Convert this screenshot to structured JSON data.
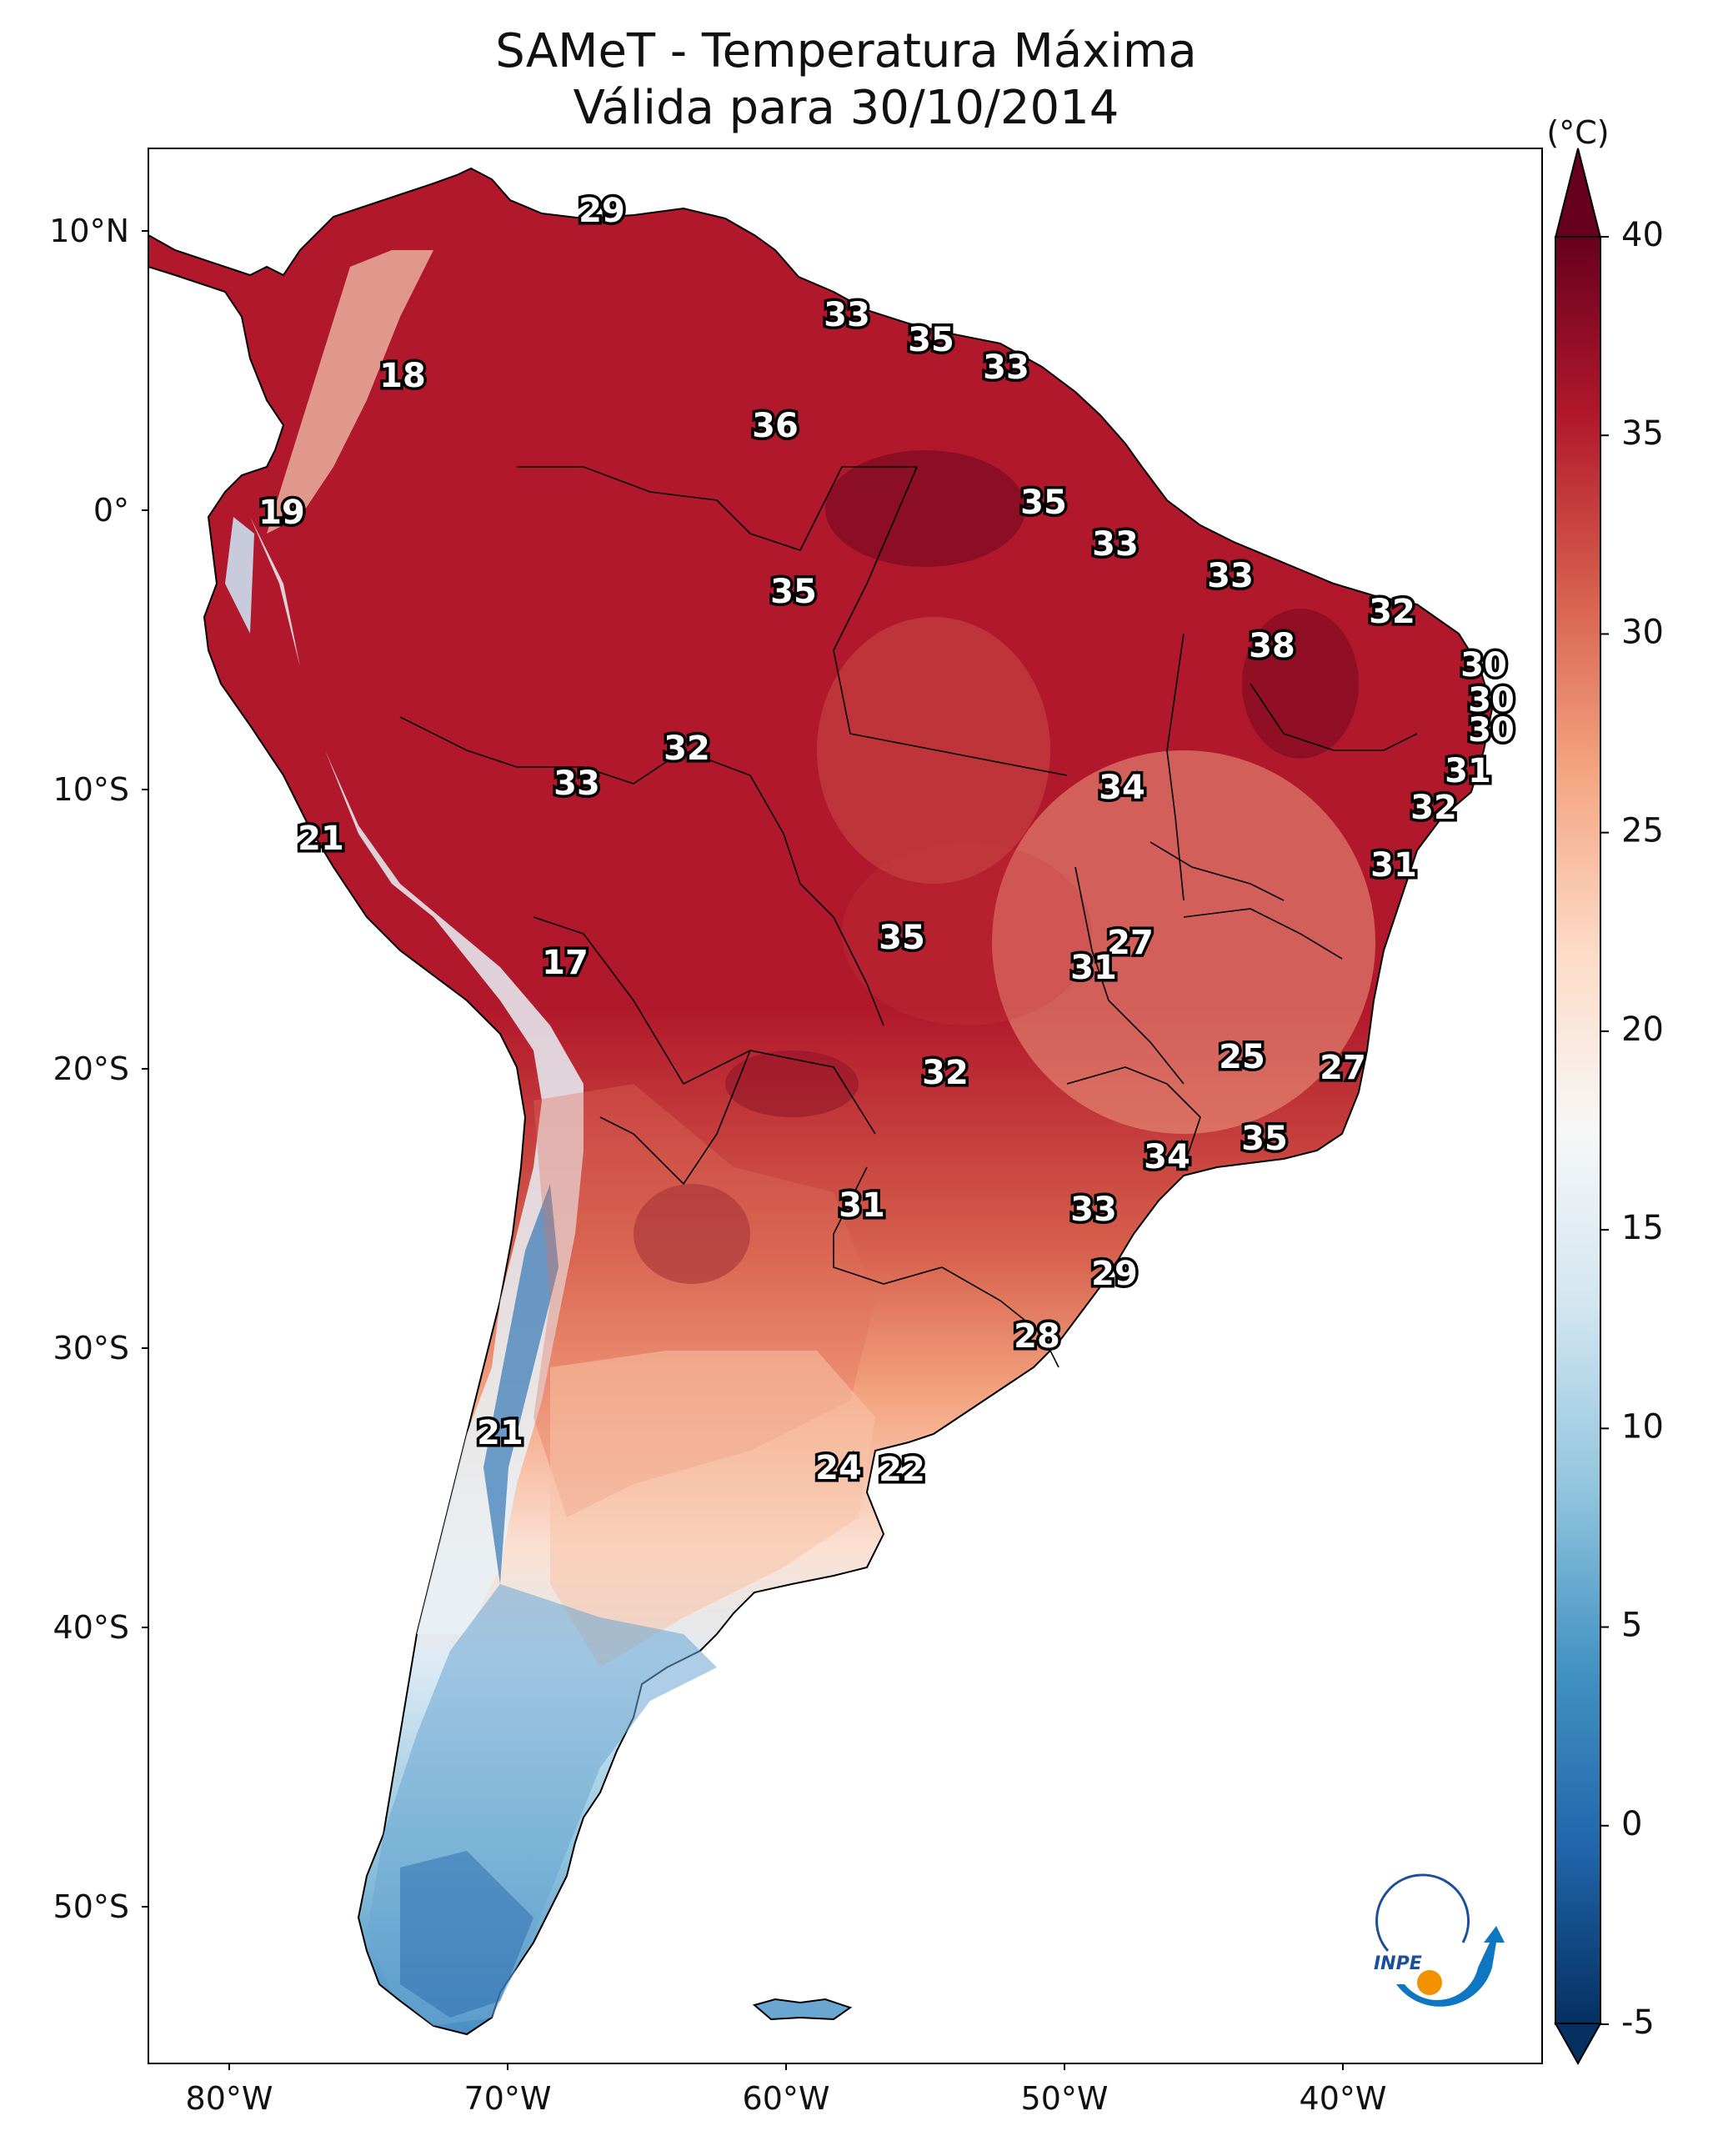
{
  "title": {
    "line1": "SAMeT - Temperatura Máxima",
    "line2": "Válida para 30/10/2014"
  },
  "colorbar": {
    "unit": "(°C)",
    "ticks": [
      "40",
      "35",
      "30",
      "25",
      "20",
      "15",
      "10",
      "5",
      "0",
      "-5"
    ],
    "range": [
      -5,
      40
    ],
    "extend": "both",
    "colormap": [
      "#053061",
      "#2166ac",
      "#4393c3",
      "#92c5de",
      "#d1e5f0",
      "#f7f7f7",
      "#fddbc7",
      "#f4a582",
      "#d6604d",
      "#b2182b",
      "#67001f"
    ]
  },
  "axes": {
    "longitude_labels": [
      "80°W",
      "70°W",
      "60°W",
      "50°W",
      "40°W"
    ],
    "latitude_labels": [
      "10°N",
      "0°",
      "10°S",
      "20°S",
      "30°S",
      "40°S",
      "50°S"
    ]
  },
  "station_labels": [
    "29",
    "33",
    "35",
    "33",
    "18",
    "36",
    "19",
    "35",
    "33",
    "35",
    "33",
    "32",
    "38",
    "30",
    "30",
    "30",
    "32",
    "33",
    "34",
    "31",
    "32",
    "21",
    "31",
    "27",
    "35",
    "17",
    "31",
    "25",
    "27",
    "32",
    "35",
    "34",
    "31",
    "33",
    "29",
    "28",
    "21",
    "24",
    "22"
  ],
  "logo": {
    "text": "INPE"
  }
}
